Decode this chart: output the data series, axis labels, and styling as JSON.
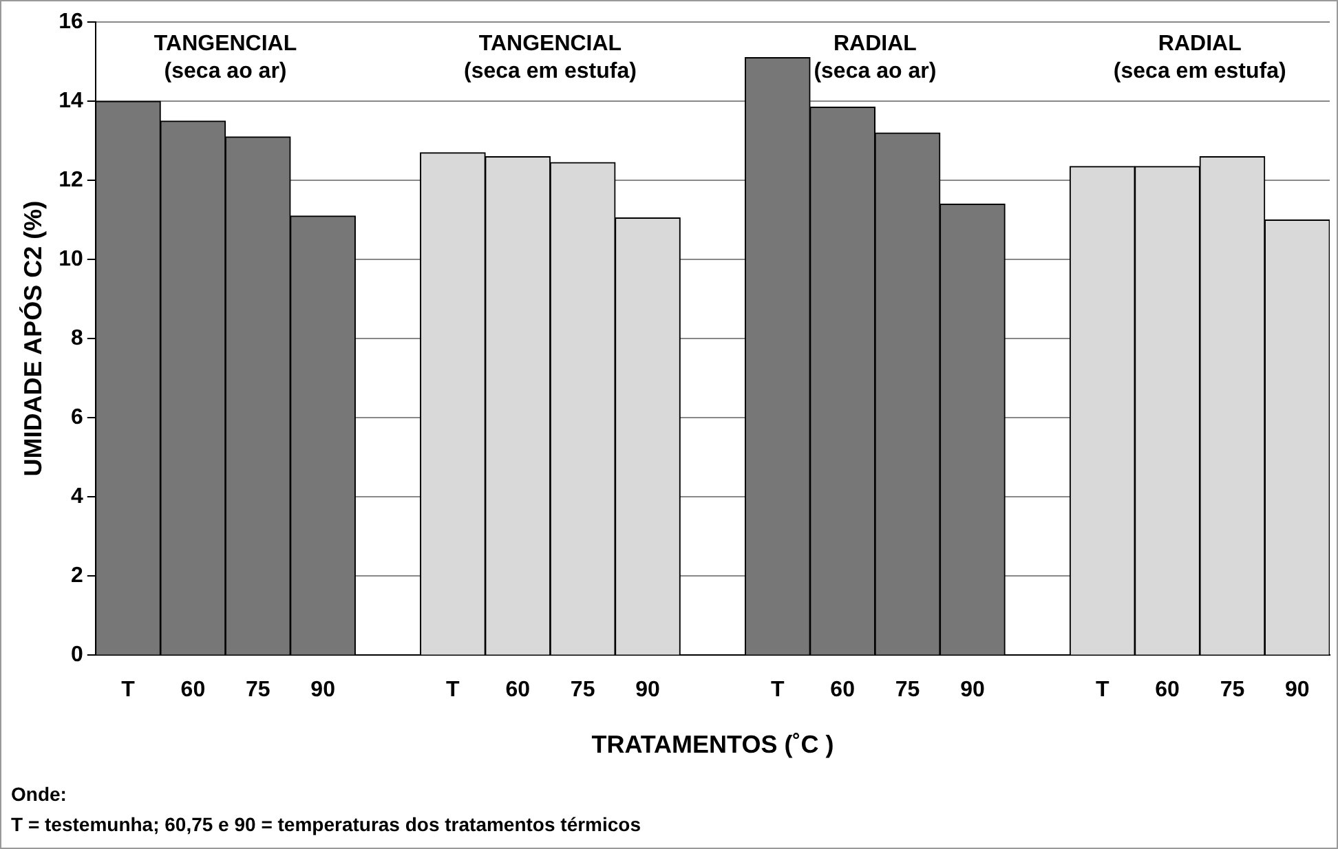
{
  "chart_data": {
    "type": "bar",
    "xlabel": "TRATAMENTOS (˚C )",
    "ylabel": "UMIDADE APÓS C2 (%)",
    "categories": [
      "T",
      "60",
      "75",
      "90",
      null,
      "T",
      "60",
      "75",
      "90",
      null,
      "T",
      "60",
      "75",
      "90",
      null,
      "T",
      "60",
      "75",
      "90"
    ],
    "values": [
      14.0,
      13.5,
      13.1,
      11.1,
      null,
      12.7,
      12.6,
      12.45,
      11.05,
      null,
      15.1,
      13.85,
      13.2,
      11.4,
      null,
      12.35,
      12.35,
      12.6,
      11.0
    ],
    "colors": [
      "#777777",
      "#777777",
      "#777777",
      "#777777",
      "#ffffff",
      "#d9d9d9",
      "#d9d9d9",
      "#d9d9d9",
      "#d9d9d9",
      "#ffffff",
      "#777777",
      "#777777",
      "#777777",
      "#777777",
      "#ffffff",
      "#d9d9d9",
      "#d9d9d9",
      "#d9d9d9",
      "#d9d9d9"
    ],
    "ylim": [
      0,
      16
    ],
    "yticks": [
      0,
      2,
      4,
      6,
      8,
      10,
      12,
      14,
      16
    ],
    "grid": "y",
    "legend": false,
    "annotations": [
      "TANGENCIAL\n(seca ao ar)",
      "TANGENCIAL\n(seca em estufa)",
      "RADIAL\n(seca ao ar)",
      "RADIAL\n(seca em estufa)",
      "Onde:",
      "T = testemunha; 60,75 e 90 = temperaturas dos tratamentos térmicos"
    ]
  }
}
